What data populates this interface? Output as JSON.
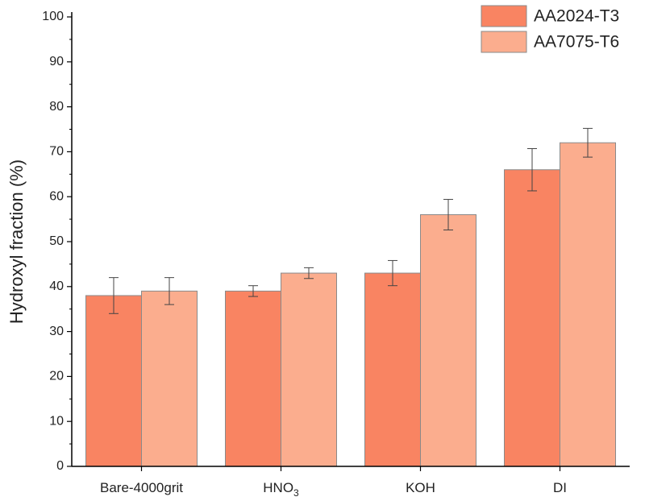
{
  "chart_data": {
    "type": "bar",
    "title": "",
    "xlabel": "",
    "ylabel": "Hydroxyl fraction (%)",
    "ylim": [
      0,
      100
    ],
    "yticks": [
      0,
      10,
      20,
      30,
      40,
      50,
      60,
      70,
      80,
      90,
      100
    ],
    "categories": [
      {
        "main": "Bare-4000grit",
        "sub": ""
      },
      {
        "main": "HNO",
        "sub": "3"
      },
      {
        "main": "KOH",
        "sub": ""
      },
      {
        "main": "DI",
        "sub": ""
      }
    ],
    "series": [
      {
        "name": "AA2024-T3",
        "color": "#F98462",
        "values": [
          38,
          39,
          43,
          66
        ],
        "errors": [
          4,
          1.2,
          2.8,
          4.7
        ]
      },
      {
        "name": "AA7075-T6",
        "color": "#FBAD8E",
        "values": [
          39,
          43,
          56,
          72
        ],
        "errors": [
          3,
          1.2,
          3.4,
          3.2
        ]
      }
    ],
    "legend_position": "top-right",
    "grid": false
  }
}
